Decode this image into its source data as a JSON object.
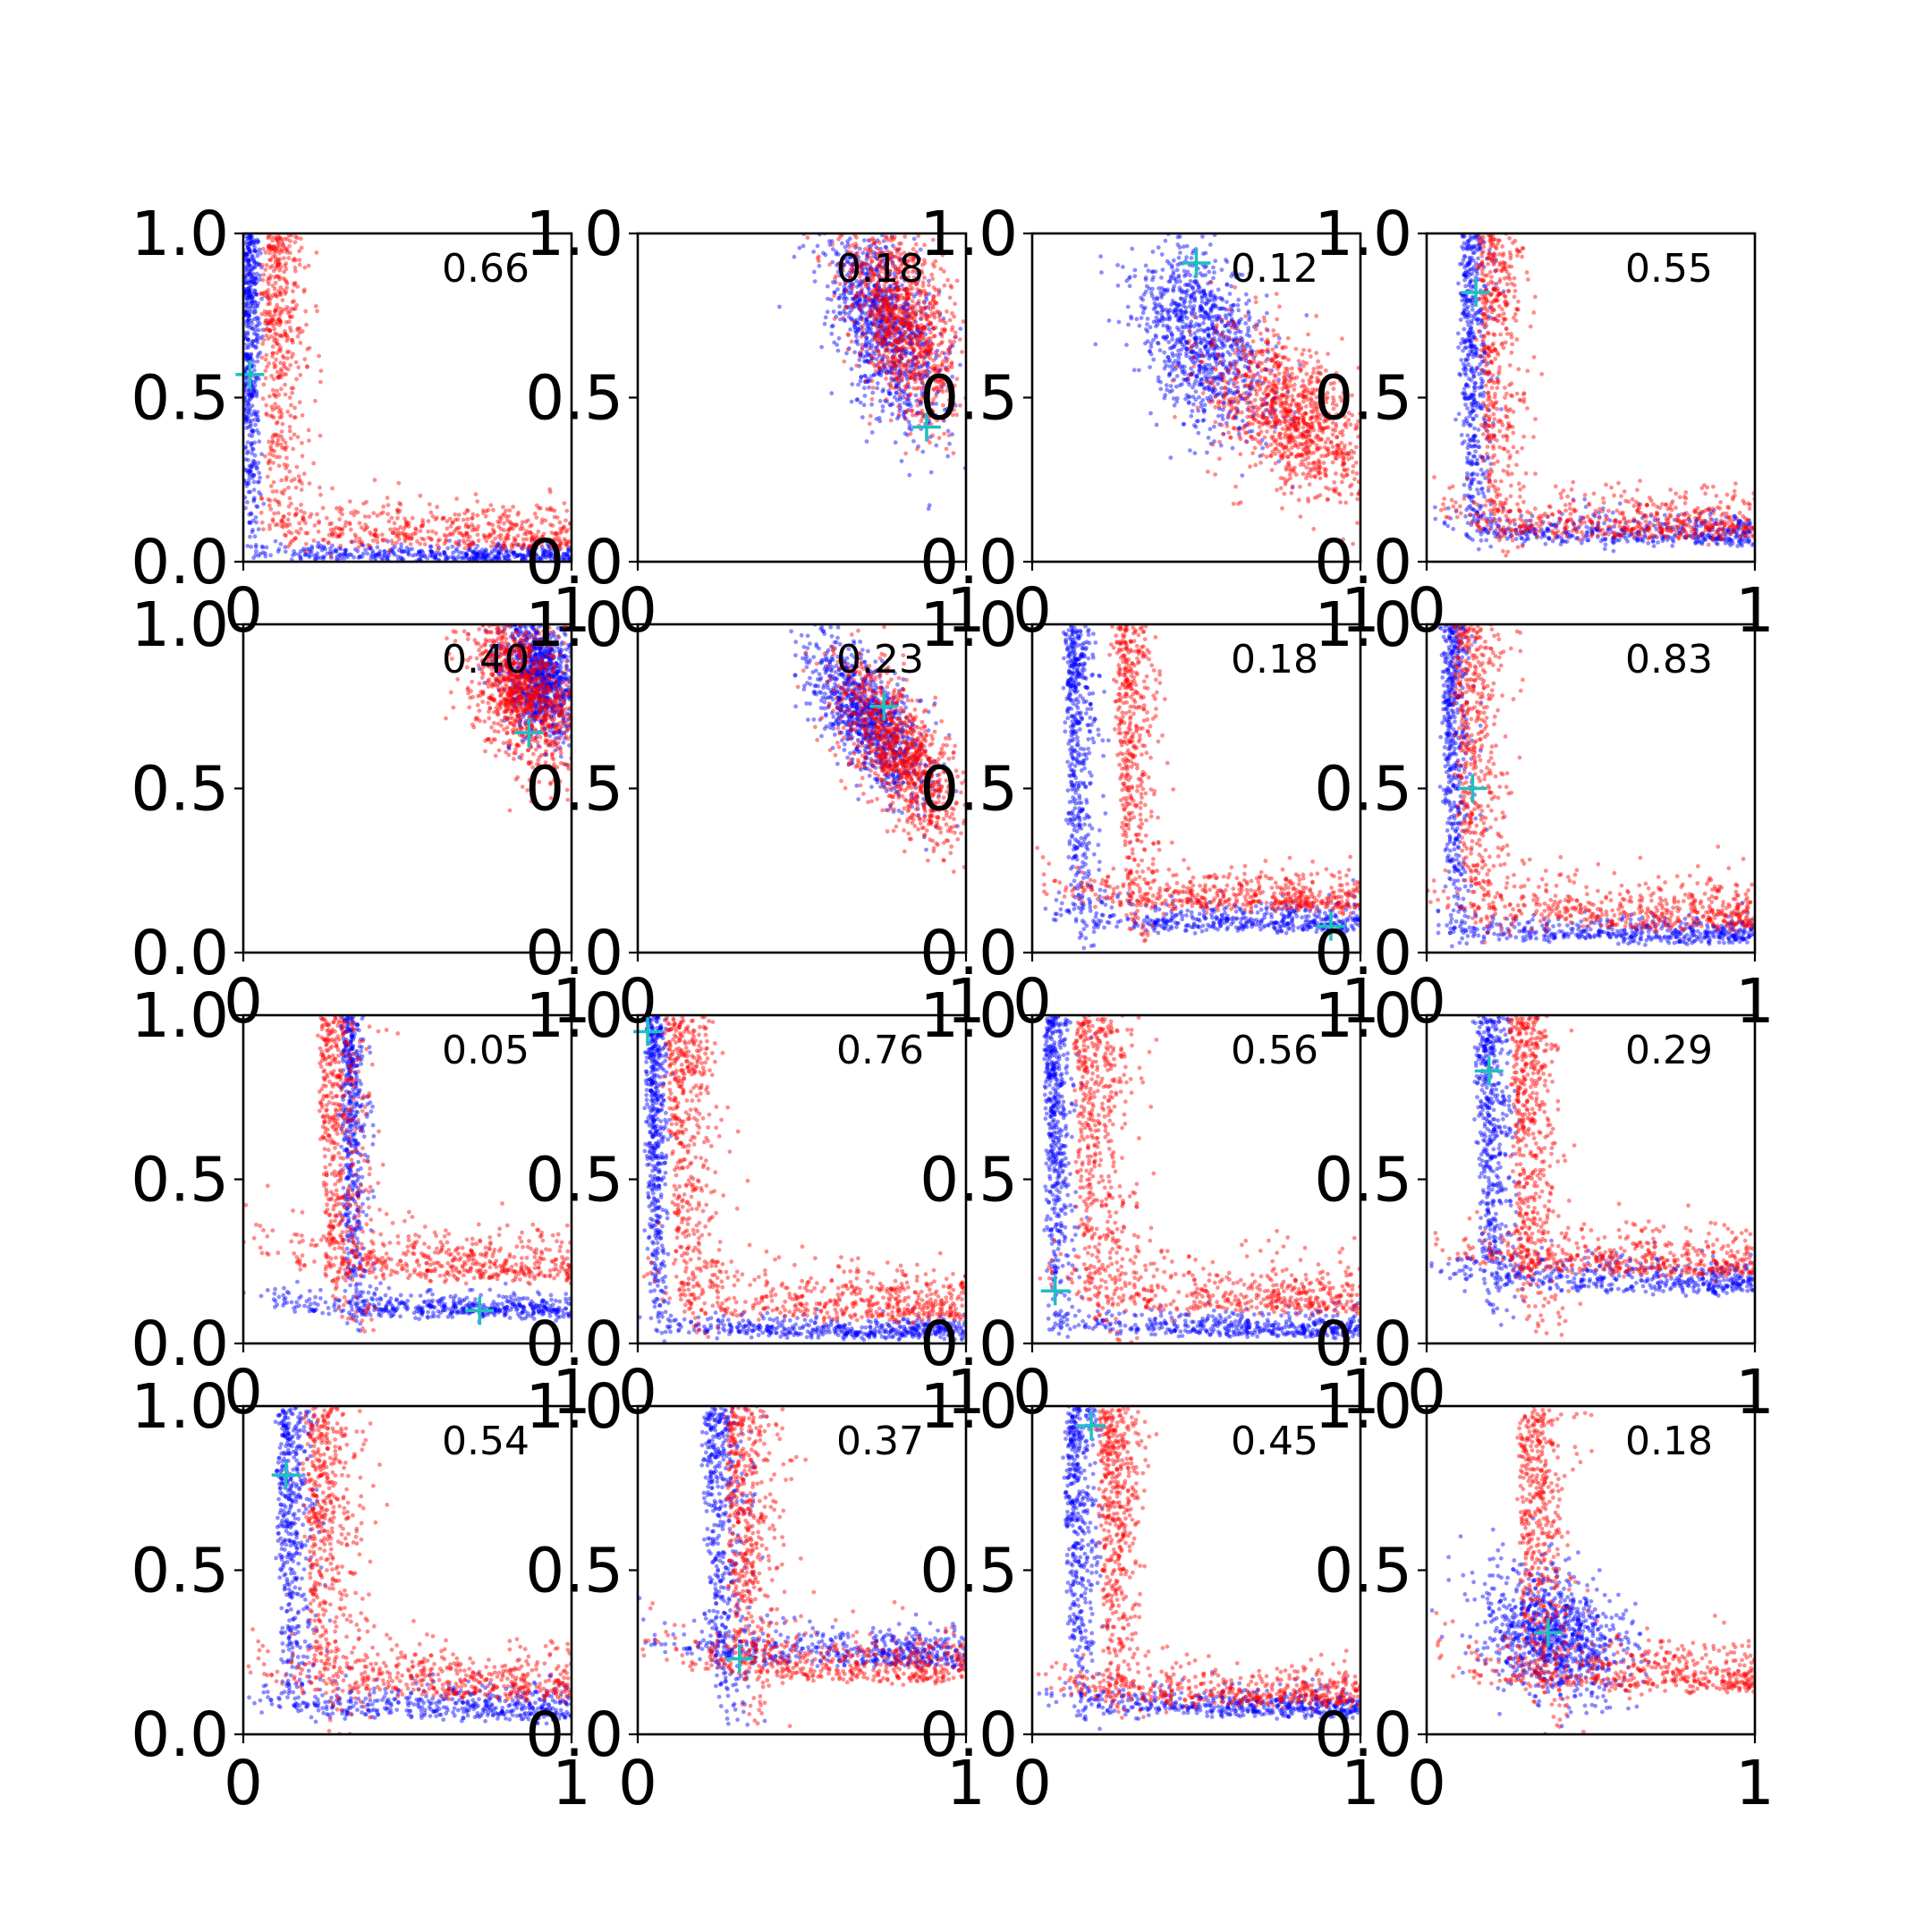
{
  "chart_data": {
    "type": "scatter",
    "layout": "4x4 grid of scatter subplots",
    "xlim": [
      0,
      1
    ],
    "ylim": [
      0,
      1
    ],
    "x_ticks": [
      "0",
      "1"
    ],
    "y_ticks": [
      "0.0",
      "0.5",
      "1.0"
    ],
    "series_colors": {
      "blue": "#0000ff",
      "red": "#ff0000",
      "marker": "#1fbfbf"
    },
    "panels": [
      {
        "annotation": "0.66",
        "marker": [
          0.02,
          0.57
        ],
        "blue": {
          "shape": "L",
          "x0": 0.0,
          "y0": 0.0,
          "spread": 0.025
        },
        "red": {
          "shape": "L",
          "x0": 0.05,
          "y0": 0.03,
          "spread": 0.08
        }
      },
      {
        "annotation": "0.18",
        "marker": [
          0.88,
          0.41
        ],
        "blue": {
          "shape": "blob",
          "cx": 0.75,
          "cy": 0.72,
          "sx": 0.09,
          "sy": 0.16,
          "rho": -0.6
        },
        "red": {
          "shape": "blob",
          "cx": 0.8,
          "cy": 0.75,
          "sx": 0.09,
          "sy": 0.16,
          "rho": -0.5
        }
      },
      {
        "annotation": "0.12",
        "marker": [
          0.5,
          0.91
        ],
        "blue": {
          "shape": "blob",
          "cx": 0.52,
          "cy": 0.68,
          "sx": 0.1,
          "sy": 0.14,
          "rho": -0.4
        },
        "red": {
          "shape": "blob",
          "cx": 0.78,
          "cy": 0.45,
          "sx": 0.12,
          "sy": 0.13,
          "rho": -0.5
        }
      },
      {
        "annotation": "0.55",
        "marker": [
          0.15,
          0.82
        ],
        "blue": {
          "shape": "L",
          "x0": 0.1,
          "y0": 0.05,
          "spread": 0.05
        },
        "red": {
          "shape": "L",
          "x0": 0.15,
          "y0": 0.06,
          "spread": 0.08
        }
      },
      {
        "annotation": "0.40",
        "marker": [
          0.87,
          0.67
        ],
        "blue": {
          "shape": "blob",
          "cx": 0.9,
          "cy": 0.85,
          "sx": 0.06,
          "sy": 0.1,
          "rho": -0.3
        },
        "red": {
          "shape": "blob",
          "cx": 0.85,
          "cy": 0.8,
          "sx": 0.08,
          "sy": 0.12,
          "rho": -0.4
        }
      },
      {
        "annotation": "0.23",
        "marker": [
          0.75,
          0.75
        ],
        "blue": {
          "shape": "blob",
          "cx": 0.7,
          "cy": 0.72,
          "sx": 0.09,
          "sy": 0.13,
          "rho": -0.7
        },
        "red": {
          "shape": "blob",
          "cx": 0.8,
          "cy": 0.6,
          "sx": 0.1,
          "sy": 0.14,
          "rho": -0.7
        }
      },
      {
        "annotation": "0.18",
        "marker": [
          0.91,
          0.08
        ],
        "blue": {
          "shape": "L",
          "x0": 0.1,
          "y0": 0.06,
          "spread": 0.05
        },
        "red": {
          "shape": "L",
          "x0": 0.25,
          "y0": 0.12,
          "spread": 0.07
        }
      },
      {
        "annotation": "0.83",
        "marker": [
          0.14,
          0.5
        ],
        "blue": {
          "shape": "L",
          "x0": 0.05,
          "y0": 0.03,
          "spread": 0.04
        },
        "red": {
          "shape": "L",
          "x0": 0.08,
          "y0": 0.06,
          "spread": 0.09
        }
      },
      {
        "annotation": "0.05",
        "marker": [
          0.72,
          0.1
        ],
        "blue": {
          "shape": "L",
          "x0": 0.3,
          "y0": 0.08,
          "spread": 0.04
        },
        "red": {
          "shape": "L",
          "x0": 0.22,
          "y0": 0.18,
          "spread": 0.09
        }
      },
      {
        "annotation": "0.76",
        "marker": [
          0.03,
          0.95
        ],
        "blue": {
          "shape": "L",
          "x0": 0.03,
          "y0": 0.02,
          "spread": 0.03
        },
        "red": {
          "shape": "L",
          "x0": 0.08,
          "y0": 0.06,
          "spread": 0.09
        }
      },
      {
        "annotation": "0.56",
        "marker": [
          0.07,
          0.16
        ],
        "blue": {
          "shape": "L",
          "x0": 0.04,
          "y0": 0.02,
          "spread": 0.04
        },
        "red": {
          "shape": "L",
          "x0": 0.12,
          "y0": 0.08,
          "spread": 0.1
        }
      },
      {
        "annotation": "0.29",
        "marker": [
          0.19,
          0.83
        ],
        "blue": {
          "shape": "L",
          "x0": 0.15,
          "y0": 0.15,
          "spread": 0.06
        },
        "red": {
          "shape": "L",
          "x0": 0.25,
          "y0": 0.2,
          "spread": 0.08
        }
      },
      {
        "annotation": "0.54",
        "marker": [
          0.13,
          0.79
        ],
        "blue": {
          "shape": "L",
          "x0": 0.1,
          "y0": 0.04,
          "spread": 0.06
        },
        "red": {
          "shape": "L",
          "x0": 0.18,
          "y0": 0.1,
          "spread": 0.09
        }
      },
      {
        "annotation": "0.37",
        "marker": [
          0.31,
          0.23
        ],
        "blue": {
          "shape": "L",
          "x0": 0.2,
          "y0": 0.2,
          "spread": 0.07
        },
        "red": {
          "shape": "L",
          "x0": 0.26,
          "y0": 0.15,
          "spread": 0.09
        }
      },
      {
        "annotation": "0.45",
        "marker": [
          0.18,
          0.94
        ],
        "blue": {
          "shape": "L",
          "x0": 0.1,
          "y0": 0.05,
          "spread": 0.05
        },
        "red": {
          "shape": "L",
          "x0": 0.2,
          "y0": 0.08,
          "spread": 0.07
        }
      },
      {
        "annotation": "0.18",
        "marker": [
          0.37,
          0.31
        ],
        "blue": {
          "shape": "blob",
          "cx": 0.38,
          "cy": 0.3,
          "sx": 0.11,
          "sy": 0.1,
          "rho": -0.3
        },
        "red": {
          "shape": "L",
          "x0": 0.27,
          "y0": 0.12,
          "spread": 0.09
        }
      }
    ]
  }
}
